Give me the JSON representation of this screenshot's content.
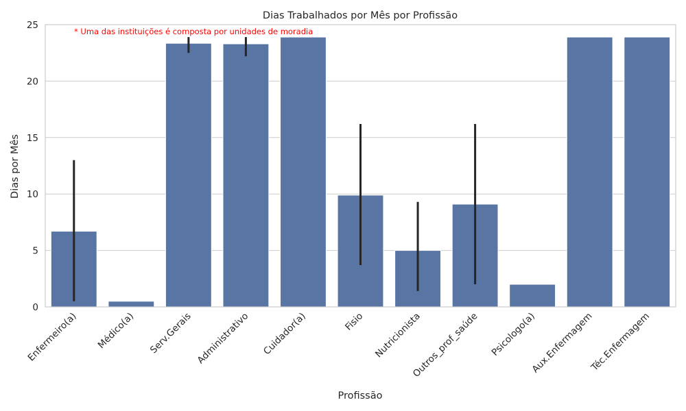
{
  "chart_data": {
    "type": "bar",
    "title": "Dias Trabalhados por Mês por Profissão",
    "xlabel": "Profissão",
    "ylabel": "Dias por Mês",
    "ylim": [
      0,
      25
    ],
    "yticks": [
      0,
      5,
      10,
      15,
      20,
      25
    ],
    "grid": "horizontal",
    "bar_color": "#5875a4",
    "errorbar_color": "#262626",
    "annotation": {
      "text": "* Uma das instituições é composta por unidades de moradia",
      "color": "#ff0000"
    },
    "categories": [
      "Enfermeiro(a)",
      "Médico(a)",
      "Serv.Gerais",
      "Administrativo",
      "Cuidador(a)",
      "Fisio",
      "Nutricionista",
      "Outros_prof_saúde",
      "Psicologo(a)",
      "Aux.Enfermagem",
      "Téc.Enfermagem"
    ],
    "values": [
      6.7,
      0.5,
      23.35,
      23.3,
      23.9,
      9.9,
      5.0,
      9.1,
      2.0,
      23.9,
      23.9
    ],
    "error_low": [
      0.5,
      null,
      22.5,
      22.2,
      null,
      3.7,
      1.4,
      2.0,
      null,
      null,
      null
    ],
    "error_high": [
      13.0,
      null,
      23.9,
      23.9,
      null,
      16.2,
      9.3,
      16.2,
      null,
      null,
      null
    ]
  }
}
